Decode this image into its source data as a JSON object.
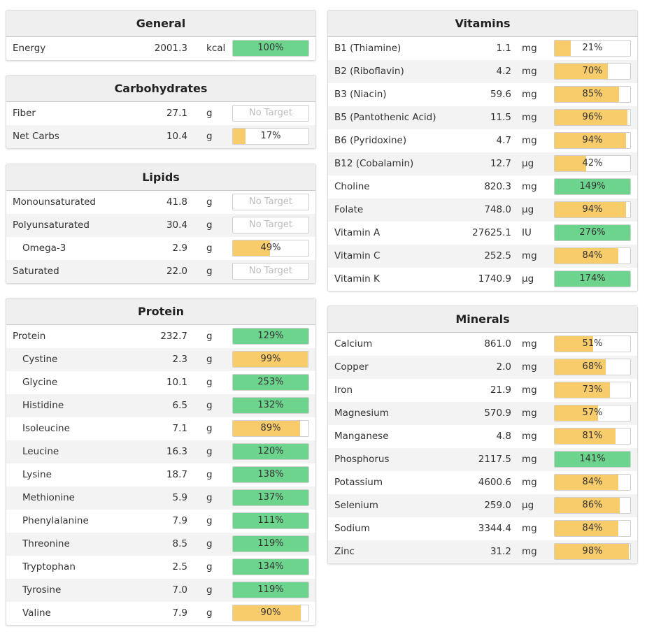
{
  "colors": {
    "green": "#6dd48d",
    "yellow": "#f8cc6a"
  },
  "general": {
    "title": "General",
    "rows": [
      {
        "name": "Energy",
        "amount": "2001.3",
        "unit": "kcal",
        "pct_label": "100%",
        "fill": 1.0,
        "color": "green"
      }
    ]
  },
  "carbohydrates": {
    "title": "Carbohydrates",
    "rows": [
      {
        "name": "Fiber",
        "amount": "27.1",
        "unit": "g",
        "pct_label": "No Target",
        "fill": 0,
        "color": "none"
      },
      {
        "name": "Net Carbs",
        "amount": "10.4",
        "unit": "g",
        "pct_label": "17%",
        "fill": 0.17,
        "color": "yellow"
      }
    ]
  },
  "lipids": {
    "title": "Lipids",
    "rows": [
      {
        "name": "Monounsaturated",
        "amount": "41.8",
        "unit": "g",
        "pct_label": "No Target",
        "fill": 0,
        "color": "none"
      },
      {
        "name": "Polyunsaturated",
        "amount": "30.4",
        "unit": "g",
        "pct_label": "No Target",
        "fill": 0,
        "color": "none"
      },
      {
        "name": "Omega-3",
        "amount": "2.9",
        "unit": "g",
        "pct_label": "49%",
        "fill": 0.49,
        "color": "yellow",
        "indent": true
      },
      {
        "name": "Saturated",
        "amount": "22.0",
        "unit": "g",
        "pct_label": "No Target",
        "fill": 0,
        "color": "none"
      }
    ]
  },
  "protein": {
    "title": "Protein",
    "rows": [
      {
        "name": "Protein",
        "amount": "232.7",
        "unit": "g",
        "pct_label": "129%",
        "fill": 1.0,
        "color": "green"
      },
      {
        "name": "Cystine",
        "amount": "2.3",
        "unit": "g",
        "pct_label": "99%",
        "fill": 0.99,
        "color": "yellow",
        "indent": true
      },
      {
        "name": "Glycine",
        "amount": "10.1",
        "unit": "g",
        "pct_label": "253%",
        "fill": 1.0,
        "color": "green",
        "indent": true
      },
      {
        "name": "Histidine",
        "amount": "6.5",
        "unit": "g",
        "pct_label": "132%",
        "fill": 1.0,
        "color": "green",
        "indent": true
      },
      {
        "name": "Isoleucine",
        "amount": "7.1",
        "unit": "g",
        "pct_label": "89%",
        "fill": 0.89,
        "color": "yellow",
        "indent": true
      },
      {
        "name": "Leucine",
        "amount": "16.3",
        "unit": "g",
        "pct_label": "120%",
        "fill": 1.0,
        "color": "green",
        "indent": true
      },
      {
        "name": "Lysine",
        "amount": "18.7",
        "unit": "g",
        "pct_label": "138%",
        "fill": 1.0,
        "color": "green",
        "indent": true
      },
      {
        "name": "Methionine",
        "amount": "5.9",
        "unit": "g",
        "pct_label": "137%",
        "fill": 1.0,
        "color": "green",
        "indent": true
      },
      {
        "name": "Phenylalanine",
        "amount": "7.9",
        "unit": "g",
        "pct_label": "111%",
        "fill": 1.0,
        "color": "green",
        "indent": true
      },
      {
        "name": "Threonine",
        "amount": "8.5",
        "unit": "g",
        "pct_label": "119%",
        "fill": 1.0,
        "color": "green",
        "indent": true
      },
      {
        "name": "Tryptophan",
        "amount": "2.5",
        "unit": "g",
        "pct_label": "134%",
        "fill": 1.0,
        "color": "green",
        "indent": true
      },
      {
        "name": "Tyrosine",
        "amount": "7.0",
        "unit": "g",
        "pct_label": "119%",
        "fill": 1.0,
        "color": "green",
        "indent": true
      },
      {
        "name": "Valine",
        "amount": "7.9",
        "unit": "g",
        "pct_label": "90%",
        "fill": 0.9,
        "color": "yellow",
        "indent": true
      }
    ]
  },
  "vitamins": {
    "title": "Vitamins",
    "rows": [
      {
        "name": "B1 (Thiamine)",
        "amount": "1.1",
        "unit": "mg",
        "pct_label": "21%",
        "fill": 0.21,
        "color": "yellow"
      },
      {
        "name": "B2 (Riboflavin)",
        "amount": "4.2",
        "unit": "mg",
        "pct_label": "70%",
        "fill": 0.7,
        "color": "yellow"
      },
      {
        "name": "B3 (Niacin)",
        "amount": "59.6",
        "unit": "mg",
        "pct_label": "85%",
        "fill": 0.85,
        "color": "yellow"
      },
      {
        "name": "B5 (Pantothenic Acid)",
        "amount": "11.5",
        "unit": "mg",
        "pct_label": "96%",
        "fill": 0.96,
        "color": "yellow"
      },
      {
        "name": "B6 (Pyridoxine)",
        "amount": "4.7",
        "unit": "mg",
        "pct_label": "94%",
        "fill": 0.94,
        "color": "yellow"
      },
      {
        "name": "B12 (Cobalamin)",
        "amount": "12.7",
        "unit": "µg",
        "pct_label": "42%",
        "fill": 0.42,
        "color": "yellow"
      },
      {
        "name": "Choline",
        "amount": "820.3",
        "unit": "mg",
        "pct_label": "149%",
        "fill": 1.0,
        "color": "green"
      },
      {
        "name": "Folate",
        "amount": "748.0",
        "unit": "µg",
        "pct_label": "94%",
        "fill": 0.94,
        "color": "yellow"
      },
      {
        "name": "Vitamin A",
        "amount": "27625.1",
        "unit": "IU",
        "pct_label": "276%",
        "fill": 1.0,
        "color": "green"
      },
      {
        "name": "Vitamin C",
        "amount": "252.5",
        "unit": "mg",
        "pct_label": "84%",
        "fill": 0.84,
        "color": "yellow"
      },
      {
        "name": "Vitamin K",
        "amount": "1740.9",
        "unit": "µg",
        "pct_label": "174%",
        "fill": 1.0,
        "color": "green"
      }
    ]
  },
  "minerals": {
    "title": "Minerals",
    "rows": [
      {
        "name": "Calcium",
        "amount": "861.0",
        "unit": "mg",
        "pct_label": "51%",
        "fill": 0.51,
        "color": "yellow"
      },
      {
        "name": "Copper",
        "amount": "2.0",
        "unit": "mg",
        "pct_label": "68%",
        "fill": 0.68,
        "color": "yellow"
      },
      {
        "name": "Iron",
        "amount": "21.9",
        "unit": "mg",
        "pct_label": "73%",
        "fill": 0.73,
        "color": "yellow"
      },
      {
        "name": "Magnesium",
        "amount": "570.9",
        "unit": "mg",
        "pct_label": "57%",
        "fill": 0.57,
        "color": "yellow"
      },
      {
        "name": "Manganese",
        "amount": "4.8",
        "unit": "mg",
        "pct_label": "81%",
        "fill": 0.81,
        "color": "yellow"
      },
      {
        "name": "Phosphorus",
        "amount": "2117.5",
        "unit": "mg",
        "pct_label": "141%",
        "fill": 1.0,
        "color": "green"
      },
      {
        "name": "Potassium",
        "amount": "4600.6",
        "unit": "mg",
        "pct_label": "84%",
        "fill": 0.84,
        "color": "yellow"
      },
      {
        "name": "Selenium",
        "amount": "259.0",
        "unit": "µg",
        "pct_label": "86%",
        "fill": 0.86,
        "color": "yellow"
      },
      {
        "name": "Sodium",
        "amount": "3344.4",
        "unit": "mg",
        "pct_label": "84%",
        "fill": 0.84,
        "color": "yellow"
      },
      {
        "name": "Zinc",
        "amount": "31.2",
        "unit": "mg",
        "pct_label": "98%",
        "fill": 0.98,
        "color": "yellow"
      }
    ]
  }
}
